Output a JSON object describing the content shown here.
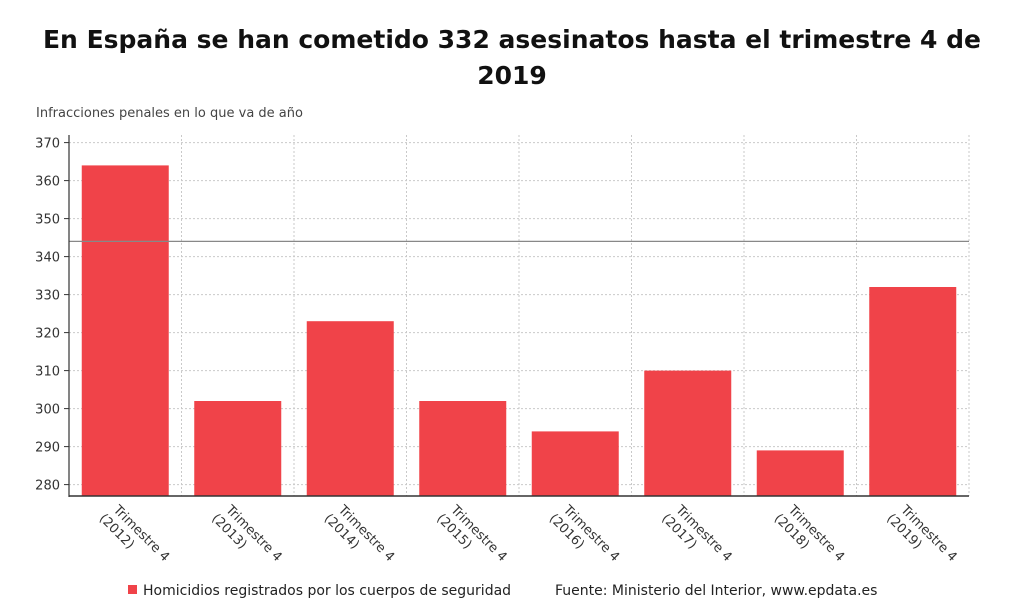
{
  "title_line1": "En España se han cometido 332 asesinatos hasta el trimestre 4 de",
  "title_line2": "2019",
  "subtitle": "Infracciones penales en lo que va de año",
  "legend_label": "Homicidios registrados por los cuerpos de seguridad",
  "source": "Fuente: Ministerio del Interior, www.epdata.es",
  "colors": {
    "bar": "#f04349",
    "grid": "#c9c9c9",
    "axis": "#333333",
    "ref_line": "#888888"
  },
  "chart_data": {
    "type": "bar",
    "categories": [
      [
        "Trimestre 4",
        "(2012)"
      ],
      [
        "Trimestre 4",
        "(2013)"
      ],
      [
        "Trimestre 4",
        "(2014)"
      ],
      [
        "Trimestre 4",
        "(2015)"
      ],
      [
        "Trimestre 4",
        "(2016)"
      ],
      [
        "Trimestre 4",
        "(2017)"
      ],
      [
        "Trimestre 4",
        "(2018)"
      ],
      [
        "Trimestre 4",
        "(2019)"
      ]
    ],
    "series": [
      {
        "name": "Homicidios registrados por los cuerpos de seguridad",
        "values": [
          364,
          302,
          323,
          302,
          294,
          310,
          289,
          332
        ]
      }
    ],
    "yticks": [
      280,
      290,
      300,
      310,
      320,
      330,
      340,
      350,
      360,
      370
    ],
    "ylim": [
      277,
      372
    ],
    "reference_line": 344,
    "grid": true
  }
}
